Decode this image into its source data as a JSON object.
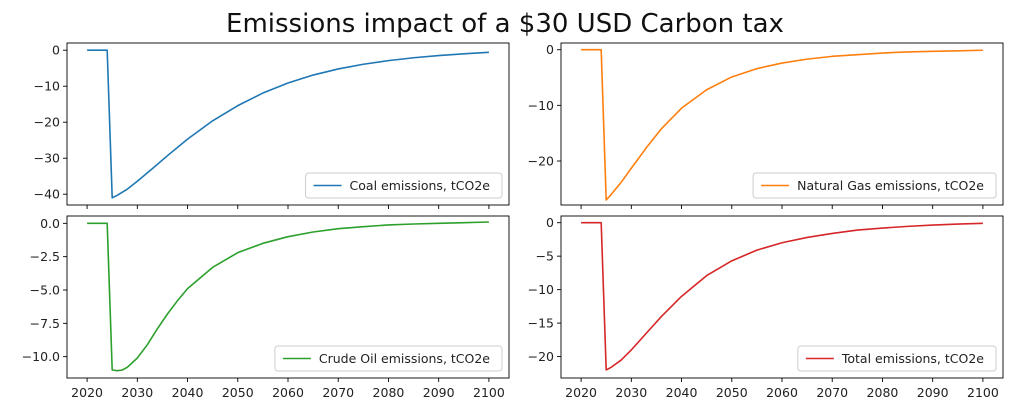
{
  "figure": {
    "title": "Emissions impact of a $30 USD Carbon tax"
  },
  "chart_data": [
    {
      "type": "line",
      "series_name": "Coal emissions, tCO2e",
      "color": "#1f77b4",
      "xlim": [
        2016,
        2104
      ],
      "ylim": [
        -43,
        2
      ],
      "xticks": [
        2020,
        2030,
        2040,
        2050,
        2060,
        2070,
        2080,
        2090,
        2100
      ],
      "xtick_labels_visible": false,
      "yticks": [
        0,
        -10,
        -20,
        -30,
        -40
      ],
      "ytick_labels": [
        "0",
        "−10",
        "−20",
        "−30",
        "−40"
      ],
      "legend_loc": "lower-right",
      "x": [
        2020,
        2024,
        2025,
        2026,
        2028,
        2030,
        2033,
        2036,
        2040,
        2045,
        2050,
        2055,
        2060,
        2065,
        2070,
        2075,
        2080,
        2085,
        2090,
        2095,
        2100
      ],
      "y": [
        0,
        0,
        -41,
        -40.3,
        -38.6,
        -36.4,
        -32.9,
        -29.3,
        -24.7,
        -19.6,
        -15.4,
        -11.9,
        -9.1,
        -6.9,
        -5.2,
        -3.9,
        -2.9,
        -2.1,
        -1.5,
        -1,
        -0.6
      ]
    },
    {
      "type": "line",
      "series_name": "Natural Gas emissions, tCO2e",
      "color": "#ff7f0e",
      "xlim": [
        2016,
        2104
      ],
      "ylim": [
        -27.9,
        1.2
      ],
      "xticks": [
        2020,
        2030,
        2040,
        2050,
        2060,
        2070,
        2080,
        2090,
        2100
      ],
      "xtick_labels_visible": false,
      "yticks": [
        0,
        -10,
        -20
      ],
      "ytick_labels": [
        "0",
        "−10",
        "−20"
      ],
      "legend_loc": "lower-right",
      "x": [
        2020,
        2024,
        2025,
        2026,
        2028,
        2030,
        2033,
        2036,
        2040,
        2045,
        2050,
        2055,
        2060,
        2065,
        2070,
        2075,
        2080,
        2085,
        2090,
        2095,
        2100
      ],
      "y": [
        0,
        0,
        -27,
        -26,
        -23.8,
        -21.3,
        -17.6,
        -14.2,
        -10.5,
        -7.2,
        -4.9,
        -3.4,
        -2.4,
        -1.7,
        -1.2,
        -0.9,
        -0.6,
        -0.4,
        -0.3,
        -0.2,
        -0.1
      ]
    },
    {
      "type": "line",
      "series_name": "Crude Oil emissions, tCO2e",
      "color": "#2ca02c",
      "xlim": [
        2016,
        2104
      ],
      "ylim": [
        -11.6,
        0.55
      ],
      "xticks": [
        2020,
        2030,
        2040,
        2050,
        2060,
        2070,
        2080,
        2090,
        2100
      ],
      "xtick_labels_visible": true,
      "yticks": [
        0,
        -2.5,
        -5,
        -7.5,
        -10
      ],
      "ytick_labels": [
        "0.0",
        "−2.5",
        "−5.0",
        "−7.5",
        "−10.0"
      ],
      "legend_loc": "lower-right",
      "x": [
        2020,
        2024,
        2025,
        2026,
        2027,
        2028,
        2030,
        2032,
        2034,
        2036,
        2038,
        2040,
        2045,
        2050,
        2055,
        2060,
        2065,
        2070,
        2075,
        2080,
        2085,
        2090,
        2095,
        2100
      ],
      "y": [
        0,
        0,
        -11,
        -11.05,
        -11,
        -10.8,
        -10.1,
        -9.1,
        -7.9,
        -6.8,
        -5.8,
        -4.9,
        -3.3,
        -2.2,
        -1.5,
        -1,
        -0.65,
        -0.4,
        -0.25,
        -0.12,
        -0.05,
        0,
        0.05,
        0.1
      ]
    },
    {
      "type": "line",
      "series_name": "Total emissions, tCO2e",
      "color": "#d62728",
      "xlim": [
        2016,
        2104
      ],
      "ylim": [
        -23.2,
        1
      ],
      "xticks": [
        2020,
        2030,
        2040,
        2050,
        2060,
        2070,
        2080,
        2090,
        2100
      ],
      "xtick_labels_visible": true,
      "yticks": [
        0,
        -5,
        -10,
        -15,
        -20
      ],
      "ytick_labels": [
        "0",
        "−5",
        "−10",
        "−15",
        "−20"
      ],
      "legend_loc": "lower-right",
      "x": [
        2020,
        2024,
        2025,
        2026,
        2028,
        2030,
        2033,
        2036,
        2040,
        2045,
        2050,
        2055,
        2060,
        2065,
        2070,
        2075,
        2080,
        2085,
        2090,
        2095,
        2100
      ],
      "y": [
        0,
        0,
        -22,
        -21.6,
        -20.5,
        -19,
        -16.5,
        -14,
        -11,
        -7.9,
        -5.7,
        -4.1,
        -3,
        -2.2,
        -1.6,
        -1.1,
        -0.8,
        -0.55,
        -0.35,
        -0.2,
        -0.1
      ]
    }
  ]
}
